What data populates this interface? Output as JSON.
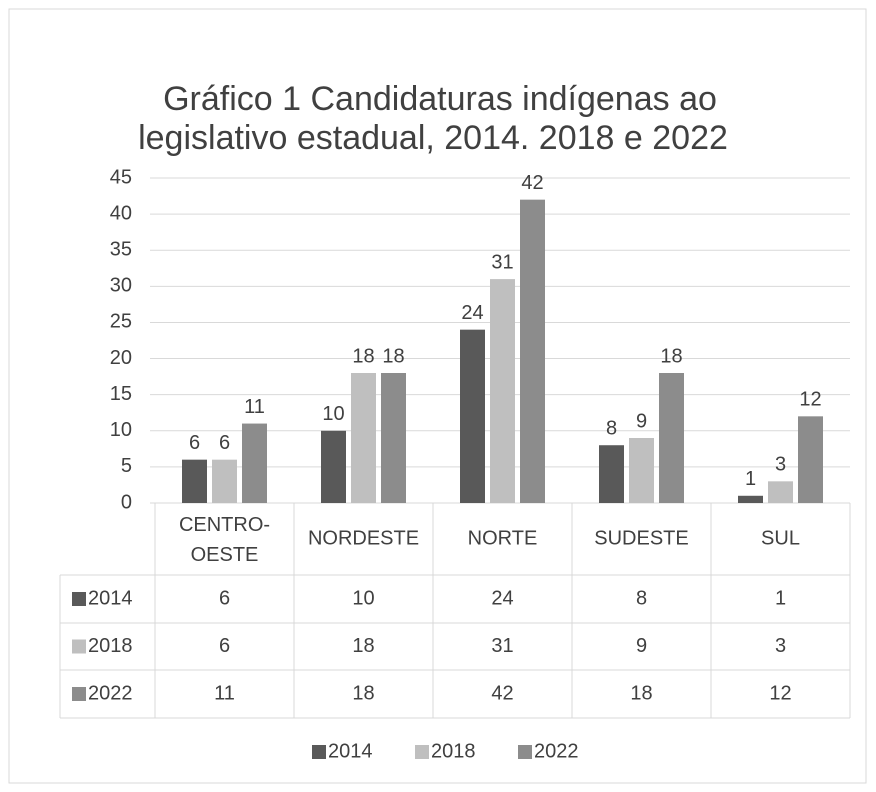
{
  "chart_data": {
    "type": "bar",
    "title": [
      "Gráfico 1  Candidaturas indígenas ao",
      "legislativo estadual, 2014. 2018 e 2022"
    ],
    "categories": [
      "CENTRO-OESTE",
      "NORDESTE",
      "NORTE",
      "SUDESTE",
      "SUL"
    ],
    "series": [
      {
        "name": "2014",
        "color": "#595959",
        "values": [
          6,
          10,
          24,
          8,
          1
        ]
      },
      {
        "name": "2018",
        "color": "#bfbfbf",
        "values": [
          6,
          18,
          31,
          9,
          3
        ]
      },
      {
        "name": "2022",
        "color": "#8c8c8c",
        "values": [
          11,
          18,
          42,
          18,
          12
        ]
      }
    ],
    "ylim": [
      0,
      45
    ],
    "yticks": [
      0,
      5,
      10,
      15,
      20,
      25,
      30,
      35,
      40,
      45
    ],
    "grid": true,
    "legend": "bottom"
  }
}
